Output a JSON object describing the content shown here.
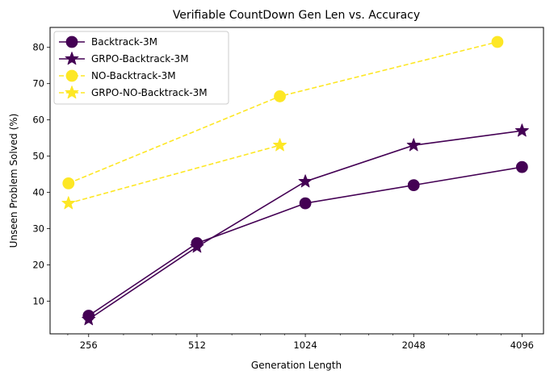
{
  "chart_data": {
    "type": "line",
    "title": "Verifiable CountDown Gen Len vs. Accuracy",
    "xlabel": "Generation Length",
    "ylabel": "Unseen Problem Solved (%)",
    "x_scale": "log2",
    "xlim": [
      200,
      4700
    ],
    "ylim": [
      1,
      85.5
    ],
    "x_ticks": [
      256,
      512,
      1024,
      2048,
      4096
    ],
    "x_tick_labels": [
      "256",
      "512",
      "1024",
      "2048",
      "4096"
    ],
    "y_ticks": [
      10,
      20,
      30,
      40,
      50,
      60,
      70,
      80
    ],
    "y_tick_labels": [
      "10",
      "20",
      "30",
      "40",
      "50",
      "60",
      "70",
      "80"
    ],
    "grid": false,
    "legend_position": "top-left",
    "series": [
      {
        "name": "Backtrack-3M",
        "color": "#440154",
        "marker": "circle",
        "line_style": "solid",
        "x": [
          256,
          512,
          1024,
          2048,
          4096
        ],
        "y": [
          6,
          26,
          37,
          42,
          47
        ]
      },
      {
        "name": "GRPO-Backtrack-3M",
        "color": "#440154",
        "marker": "star",
        "line_style": "solid",
        "x": [
          256,
          512,
          1024,
          2048,
          4096
        ],
        "y": [
          5,
          25,
          43,
          53,
          57
        ]
      },
      {
        "name": "NO-Backtrack-3M",
        "color": "#fde725",
        "marker": "circle",
        "line_style": "dashed",
        "x": [
          225,
          870,
          3500
        ],
        "y": [
          42.5,
          66.5,
          81.5
        ]
      },
      {
        "name": "GRPO-NO-Backtrack-3M",
        "color": "#fde725",
        "marker": "star",
        "line_style": "dashed",
        "x": [
          225,
          870
        ],
        "y": [
          37,
          53
        ]
      }
    ]
  }
}
